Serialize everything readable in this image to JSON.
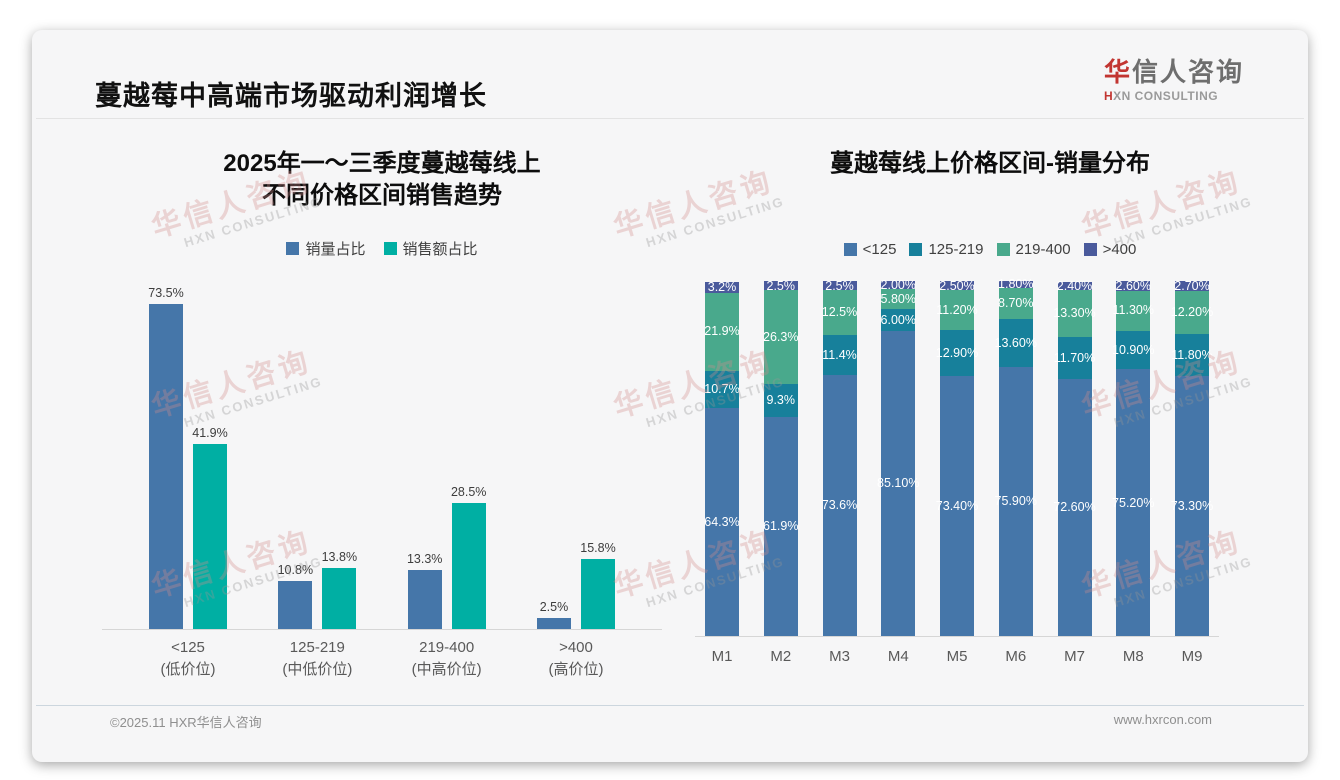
{
  "slide": {
    "title": "蔓越莓中高端市场驱动利润增长",
    "logo": {
      "name_accent": "华",
      "name_rest": "信人咨询",
      "tagline_accent": "H",
      "tagline_rest": "XN CONSULTING"
    },
    "watermark": {
      "line1": "华信人咨询",
      "line2": "HXN CONSULTING"
    },
    "footer": {
      "copyright": "©2025.11 HXR华信人咨询",
      "website": "www.hxrcon.com"
    }
  },
  "colors": {
    "volume_blue": "#4576A9",
    "value_teal": "#00AFA3",
    "band_under_125": "#4576A9",
    "band_125_219": "#17809B",
    "band_219_400": "#49A98C",
    "band_over_400": "#4A5A9C",
    "logo_red": "#C23531"
  },
  "chart_data": [
    {
      "type": "bar",
      "stacked": false,
      "title_lines": [
        "2025年一～三季度蔓越莓线上",
        "不同价格区间销售趋势"
      ],
      "legend_position": "top",
      "grid": false,
      "ylim": [
        0,
        78.5
      ],
      "categories": [
        [
          "<125",
          "(低价位)"
        ],
        [
          "125-219",
          "(中低价位)"
        ],
        [
          "219-400",
          "(中高价位)"
        ],
        [
          ">400",
          "(高价位)"
        ]
      ],
      "series": [
        {
          "name": "销量占比",
          "color": "#4576A9",
          "values": [
            73.5,
            10.8,
            13.3,
            2.5
          ],
          "labels": [
            "73.5%",
            "10.8%",
            "13.3%",
            "2.5%"
          ]
        },
        {
          "name": "销售额占比",
          "color": "#00AFA3",
          "values": [
            41.9,
            13.8,
            28.5,
            15.8
          ],
          "labels": [
            "41.9%",
            "13.8%",
            "28.5%",
            "15.8%"
          ]
        }
      ]
    },
    {
      "type": "bar",
      "stacked": true,
      "title_lines": [
        "蔓越莓线上价格区间-销量分布"
      ],
      "legend_position": "top",
      "grid": false,
      "ylim": [
        0,
        100
      ],
      "categories": [
        "M1",
        "M2",
        "M3",
        "M4",
        "M5",
        "M6",
        "M7",
        "M8",
        "M9"
      ],
      "series": [
        {
          "name": "<125",
          "color": "#4576A9",
          "values": [
            64.3,
            61.9,
            73.6,
            85.1,
            73.4,
            75.9,
            72.6,
            75.2,
            73.3
          ],
          "labels": [
            "64.3%",
            "61.9%",
            "73.6%",
            "85.10%",
            "73.40%",
            "75.90%",
            "72.60%",
            "75.20%",
            "73.30%"
          ]
        },
        {
          "name": "125-219",
          "color": "#17809B",
          "values": [
            10.7,
            9.3,
            11.4,
            6.0,
            12.9,
            13.6,
            11.7,
            10.9,
            11.8
          ],
          "labels": [
            "10.7%",
            "9.3%",
            "11.4%",
            "6.00%",
            "12.90%",
            "13.60%",
            "11.70%",
            "10.90%",
            "11.80%"
          ]
        },
        {
          "name": "219-400",
          "color": "#49A98C",
          "values": [
            21.9,
            26.3,
            12.5,
            5.8,
            11.2,
            8.7,
            13.3,
            11.3,
            12.2
          ],
          "labels": [
            "21.9%",
            "26.3%",
            "12.5%",
            "5.80%",
            "11.20%",
            "8.70%",
            "13.30%",
            "11.30%",
            "12.20%"
          ]
        },
        {
          "name": ">400",
          "color": "#4A5A9C",
          "values": [
            3.2,
            2.5,
            2.5,
            2.0,
            2.5,
            1.8,
            2.4,
            2.6,
            2.7
          ],
          "labels": [
            "3.2%",
            "2.5%",
            "2.5%",
            "2.00%",
            "2.50%",
            "1.80%",
            "2.40%",
            "2.60%",
            "2.70%"
          ]
        }
      ]
    }
  ]
}
